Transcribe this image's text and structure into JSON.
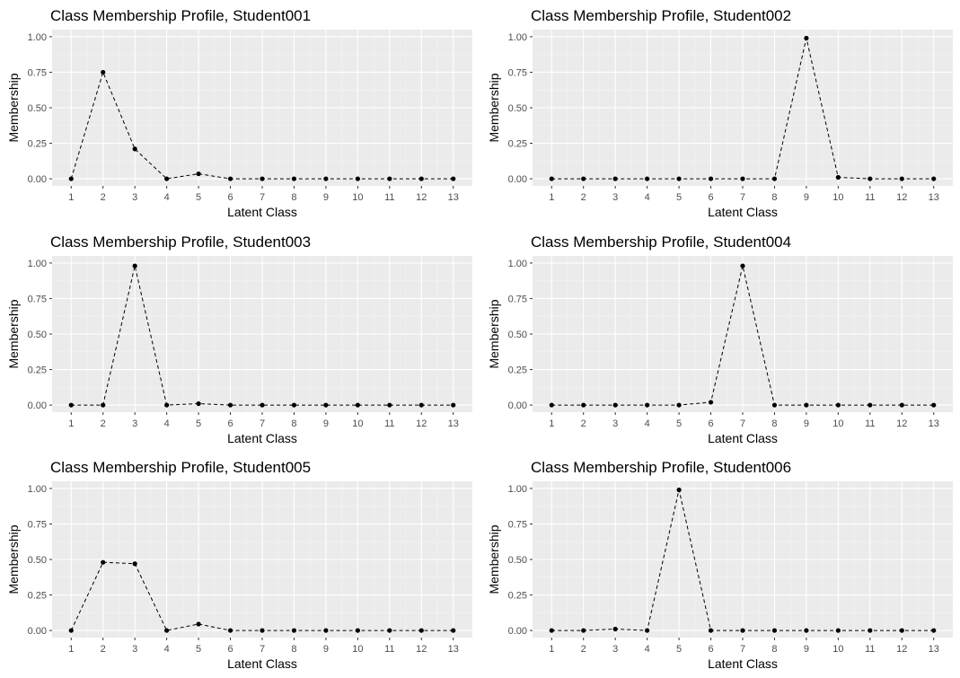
{
  "chart_data": [
    {
      "type": "line",
      "title": "Class Membership Profile, Student001",
      "xlabel": "Latent Class",
      "ylabel": "Membership",
      "x": [
        1,
        2,
        3,
        4,
        5,
        6,
        7,
        8,
        9,
        10,
        11,
        12,
        13
      ],
      "x_tick_labels": [
        "1",
        "2",
        "3",
        "4",
        "5",
        "6",
        "7",
        "8",
        "9",
        "10",
        "11",
        "12",
        "13"
      ],
      "y": [
        0.0,
        0.75,
        0.21,
        0.0,
        0.035,
        0.0,
        0.0,
        0.0,
        0.0,
        0.0,
        0.0,
        0.0,
        0.0
      ],
      "y_ticks": [
        0,
        0.25,
        0.5,
        0.75,
        1
      ],
      "y_tick_labels": [
        "0.00",
        "0.25",
        "0.50",
        "0.75",
        "1.00"
      ],
      "ylim": [
        0,
        1
      ],
      "grid": true,
      "line_style": "dashed",
      "marker": "point"
    },
    {
      "type": "line",
      "title": "Class Membership Profile, Student002",
      "xlabel": "Latent Class",
      "ylabel": "Membership",
      "x": [
        1,
        2,
        3,
        4,
        5,
        6,
        7,
        8,
        9,
        10,
        11,
        12,
        13
      ],
      "x_tick_labels": [
        "1",
        "2",
        "3",
        "4",
        "5",
        "6",
        "7",
        "8",
        "9",
        "10",
        "11",
        "12",
        "13"
      ],
      "y": [
        0.0,
        0.0,
        0.0,
        0.0,
        0.0,
        0.0,
        0.0,
        0.0,
        0.99,
        0.01,
        0.0,
        0.0,
        0.0
      ],
      "y_ticks": [
        0,
        0.25,
        0.5,
        0.75,
        1
      ],
      "y_tick_labels": [
        "0.00",
        "0.25",
        "0.50",
        "0.75",
        "1.00"
      ],
      "ylim": [
        0,
        1
      ],
      "grid": true,
      "line_style": "dashed",
      "marker": "point"
    },
    {
      "type": "line",
      "title": "Class Membership Profile, Student003",
      "xlabel": "Latent Class",
      "ylabel": "Membership",
      "x": [
        1,
        2,
        3,
        4,
        5,
        6,
        7,
        8,
        9,
        10,
        11,
        12,
        13
      ],
      "x_tick_labels": [
        "1",
        "2",
        "3",
        "4",
        "5",
        "6",
        "7",
        "8",
        "9",
        "10",
        "11",
        "12",
        "13"
      ],
      "y": [
        0.0,
        0.0,
        0.98,
        0.0,
        0.01,
        0.0,
        0.0,
        0.0,
        0.0,
        0.0,
        0.0,
        0.0,
        0.0
      ],
      "y_ticks": [
        0,
        0.25,
        0.5,
        0.75,
        1
      ],
      "y_tick_labels": [
        "0.00",
        "0.25",
        "0.50",
        "0.75",
        "1.00"
      ],
      "ylim": [
        0,
        1
      ],
      "grid": true,
      "line_style": "dashed",
      "marker": "point"
    },
    {
      "type": "line",
      "title": "Class Membership Profile, Student004",
      "xlabel": "Latent Class",
      "ylabel": "Membership",
      "x": [
        1,
        2,
        3,
        4,
        5,
        6,
        7,
        8,
        9,
        10,
        11,
        12,
        13
      ],
      "x_tick_labels": [
        "1",
        "2",
        "3",
        "4",
        "5",
        "6",
        "7",
        "8",
        "9",
        "10",
        "11",
        "12",
        "13"
      ],
      "y": [
        0.0,
        0.0,
        0.0,
        0.0,
        0.0,
        0.02,
        0.98,
        0.0,
        0.0,
        0.0,
        0.0,
        0.0,
        0.0
      ],
      "y_ticks": [
        0,
        0.25,
        0.5,
        0.75,
        1
      ],
      "y_tick_labels": [
        "0.00",
        "0.25",
        "0.50",
        "0.75",
        "1.00"
      ],
      "ylim": [
        0,
        1
      ],
      "grid": true,
      "line_style": "dashed",
      "marker": "point"
    },
    {
      "type": "line",
      "title": "Class Membership Profile, Student005",
      "xlabel": "Latent Class",
      "ylabel": "Membership",
      "x": [
        1,
        2,
        3,
        4,
        5,
        6,
        7,
        8,
        9,
        10,
        11,
        12,
        13
      ],
      "x_tick_labels": [
        "1",
        "2",
        "3",
        "4",
        "5",
        "6",
        "7",
        "8",
        "9",
        "10",
        "11",
        "12",
        "13"
      ],
      "y": [
        0.0,
        0.48,
        0.47,
        0.0,
        0.045,
        0.0,
        0.0,
        0.0,
        0.0,
        0.0,
        0.0,
        0.0,
        0.0
      ],
      "y_ticks": [
        0,
        0.25,
        0.5,
        0.75,
        1
      ],
      "y_tick_labels": [
        "0.00",
        "0.25",
        "0.50",
        "0.75",
        "1.00"
      ],
      "ylim": [
        0,
        1
      ],
      "grid": true,
      "line_style": "dashed",
      "marker": "point"
    },
    {
      "type": "line",
      "title": "Class Membership Profile, Student006",
      "xlabel": "Latent Class",
      "ylabel": "Membership",
      "x": [
        1,
        2,
        3,
        4,
        5,
        6,
        7,
        8,
        9,
        10,
        11,
        12,
        13
      ],
      "x_tick_labels": [
        "1",
        "2",
        "3",
        "4",
        "5",
        "6",
        "7",
        "8",
        "9",
        "10",
        "11",
        "12",
        "13"
      ],
      "y": [
        0.0,
        0.0,
        0.01,
        0.0,
        0.99,
        0.0,
        0.0,
        0.0,
        0.0,
        0.0,
        0.0,
        0.0,
        0.0
      ],
      "y_ticks": [
        0,
        0.25,
        0.5,
        0.75,
        1
      ],
      "y_tick_labels": [
        "0.00",
        "0.25",
        "0.50",
        "0.75",
        "1.00"
      ],
      "ylim": [
        0,
        1
      ],
      "grid": true,
      "line_style": "dashed",
      "marker": "point"
    }
  ],
  "colors": {
    "panel_background": "#ebebeb",
    "grid_major": "#ffffff",
    "grid_minor": "#f4f4f4",
    "line": "#000000",
    "point": "#000000",
    "tick_label": "#4d4d4d",
    "tick_mark": "#333333",
    "text": "#000000"
  }
}
